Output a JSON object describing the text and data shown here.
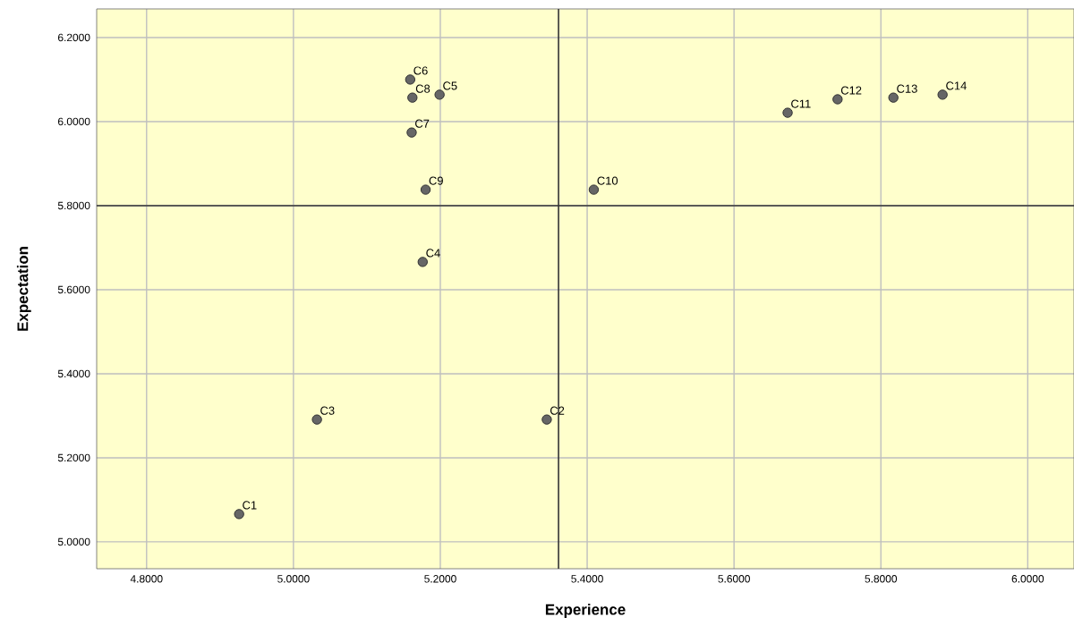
{
  "chart_data": {
    "type": "scatter",
    "xlabel": "Experience",
    "ylabel": "Expectation",
    "x": [
      4.926,
      5.345,
      5.032,
      5.176,
      5.199,
      5.159,
      5.161,
      5.162,
      5.18,
      5.409,
      5.673,
      5.741,
      5.817,
      5.884
    ],
    "values": [
      5.066,
      5.291,
      5.291,
      5.666,
      6.064,
      6.1,
      5.974,
      6.057,
      5.838,
      5.838,
      6.021,
      6.053,
      6.057,
      6.064
    ],
    "color": "#666666",
    "marker": "circle",
    "grid": true,
    "xlim": [
      4.732,
      6.063
    ],
    "ylim": [
      4.936,
      6.268
    ],
    "xticks": [
      {
        "value": 4.8,
        "label": "4.8000"
      },
      {
        "value": 5.0,
        "label": "5.0000"
      },
      {
        "value": 5.2,
        "label": "5.2000"
      },
      {
        "value": 5.4,
        "label": "5.4000"
      },
      {
        "value": 5.6,
        "label": "5.6000"
      },
      {
        "value": 5.8,
        "label": "5.8000"
      },
      {
        "value": 6.0,
        "label": "6.0000"
      }
    ],
    "yticks": [
      {
        "value": 5.0,
        "label": "5.0000"
      },
      {
        "value": 5.2,
        "label": "5.2000"
      },
      {
        "value": 5.4,
        "label": "5.4000"
      },
      {
        "value": 5.6,
        "label": "5.6000"
      },
      {
        "value": 5.8,
        "label": "5.8000"
      },
      {
        "value": 6.0,
        "label": "6.0000"
      },
      {
        "value": 6.2,
        "label": "6.2000"
      }
    ],
    "ref_lines": [
      {
        "axis": "x",
        "value": 5.361,
        "color": "#333333"
      },
      {
        "axis": "y",
        "value": 5.8,
        "color": "#333333"
      }
    ],
    "annotations": [
      {
        "text": "C1",
        "x": 4.926,
        "y": 5.066
      },
      {
        "text": "C2",
        "x": 5.345,
        "y": 5.291
      },
      {
        "text": "C3",
        "x": 5.032,
        "y": 5.291
      },
      {
        "text": "C4",
        "x": 5.176,
        "y": 5.666
      },
      {
        "text": "C5",
        "x": 5.199,
        "y": 6.064
      },
      {
        "text": "C6",
        "x": 5.159,
        "y": 6.1
      },
      {
        "text": "C7",
        "x": 5.161,
        "y": 5.974
      },
      {
        "text": "C8",
        "x": 5.162,
        "y": 6.057
      },
      {
        "text": "C9",
        "x": 5.18,
        "y": 5.838
      },
      {
        "text": "C10",
        "x": 5.409,
        "y": 5.838
      },
      {
        "text": "C11",
        "x": 5.673,
        "y": 6.021
      },
      {
        "text": "C12",
        "x": 5.741,
        "y": 6.053
      },
      {
        "text": "C13",
        "x": 5.817,
        "y": 6.057
      },
      {
        "text": "C14",
        "x": 5.884,
        "y": 6.064
      }
    ]
  }
}
